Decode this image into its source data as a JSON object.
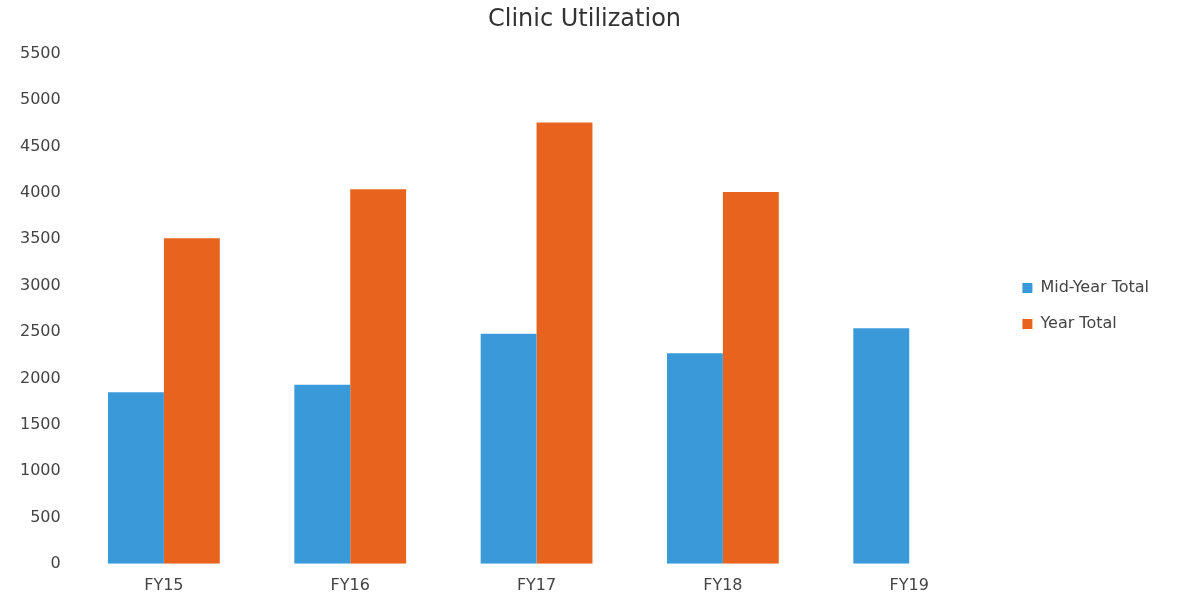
{
  "chart_data": {
    "type": "bar",
    "title": "Clinic Utilization",
    "categories": [
      "FY15",
      "FY16",
      "FY17",
      "FY18",
      "FY19"
    ],
    "series": [
      {
        "name": "Mid-Year Total",
        "color": "#3a9ad9",
        "values": [
          1850,
          1930,
          2480,
          2270,
          2540
        ]
      },
      {
        "name": "Year Total",
        "color": "#e8641e",
        "values": [
          3510,
          4040,
          4760,
          4010,
          null
        ]
      }
    ],
    "ylim": [
      0,
      5500
    ],
    "yticks": [
      0,
      500,
      1000,
      1500,
      2000,
      2500,
      3000,
      3500,
      4000,
      4500,
      5000,
      5500
    ],
    "grid": false,
    "legend": "right"
  }
}
